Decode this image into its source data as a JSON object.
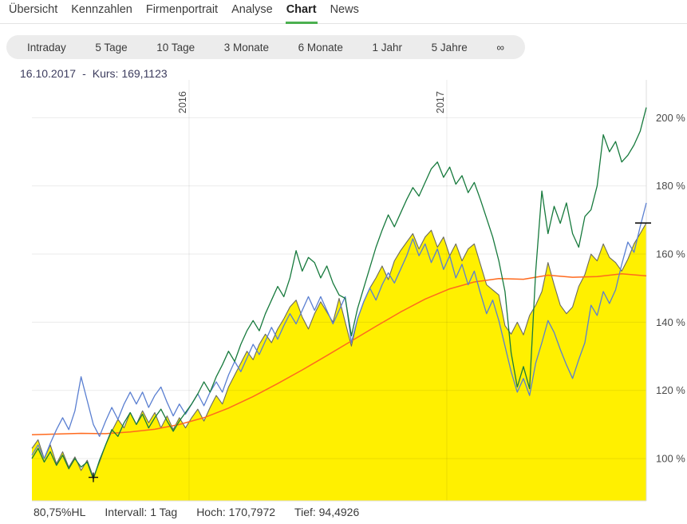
{
  "nav": {
    "items": [
      {
        "label": "Übersicht",
        "active": false
      },
      {
        "label": "Kennzahlen",
        "active": false
      },
      {
        "label": "Firmenportrait",
        "active": false
      },
      {
        "label": "Analyse",
        "active": false
      },
      {
        "label": "Chart",
        "active": true
      },
      {
        "label": "News",
        "active": false
      }
    ]
  },
  "range_bar": {
    "items": [
      "Intraday",
      "5 Tage",
      "10 Tage",
      "3 Monate",
      "6 Monate",
      "1 Jahr",
      "5 Jahre",
      "∞"
    ]
  },
  "info_line": {
    "date": "16.10.2017",
    "separator": "-",
    "kurs": "Kurs: 169,1123"
  },
  "footer": {
    "hl": "80,75%HL",
    "interval": "Intervall: 1 Tag",
    "high": "Hoch: 170,7972",
    "low": "Tief: 94,4926"
  },
  "theme": {
    "accent": "#4CB050",
    "grid": "rgba(0,0,0,0.08)",
    "frame": "#dddddd",
    "marker": "#111111"
  },
  "chart_data": {
    "type": "line",
    "title": "",
    "xlabel": "",
    "ylabel": "",
    "legend": "none",
    "grid": true,
    "y_axis": {
      "ticks": [
        100,
        120,
        140,
        160,
        180,
        200
      ],
      "tick_suffix": " %",
      "ylim": [
        87.6,
        211.1
      ],
      "side": "right"
    },
    "x_axis": {
      "gridlines": [
        {
          "label": "2016",
          "x": 0.2558
        },
        {
          "label": "2017",
          "x": 0.6753
        }
      ]
    },
    "markers": {
      "low": {
        "x": 0.1,
        "value": 94.4926
      },
      "current": {
        "x": 1.0,
        "value": 169.1123
      }
    },
    "series": [
      {
        "name": "main-price-area",
        "type": "area",
        "color": "#FFF000",
        "edge_color": "#6B6B5F",
        "values": [
          103,
          105.5,
          100,
          104,
          98.5,
          102,
          97.5,
          100.5,
          96.5,
          99.5,
          94.5,
          99,
          104,
          108,
          111.5,
          109,
          113.5,
          110,
          114,
          110.5,
          113.5,
          109,
          112.5,
          108.5,
          112,
          109,
          112,
          114.5,
          111,
          115,
          118.5,
          116,
          121,
          124.5,
          128,
          131.5,
          129,
          133.5,
          136.5,
          134,
          138,
          141,
          144.5,
          146.5,
          141.5,
          138,
          142.5,
          146,
          143,
          140,
          147,
          140,
          133,
          141,
          146,
          150,
          153,
          156.5,
          152.5,
          158,
          161,
          163.5,
          166,
          161.5,
          165,
          167,
          162,
          165,
          159.5,
          163,
          158,
          161.5,
          163,
          157,
          151,
          149.5,
          148,
          139,
          136.5,
          140,
          136.3,
          142,
          145,
          149,
          157.5,
          151,
          145,
          142.5,
          144.5,
          150.5,
          154,
          160,
          158,
          163,
          159,
          157.5,
          155,
          158.5,
          163,
          166,
          169.1
        ]
      },
      {
        "name": "moving-average",
        "type": "line",
        "color": "#FF6A1E",
        "width": 1.5,
        "values": [
          107,
          107.2,
          107.4,
          107.3,
          107.8,
          108.6,
          110,
          112,
          114.8,
          118.2,
          122,
          126,
          130.2,
          134.5,
          138.8,
          143,
          146.8,
          149.8,
          151.8,
          152.8,
          152.6,
          153.8,
          153.2,
          153.4,
          154.2,
          153.6
        ]
      },
      {
        "name": "comparison-blue",
        "type": "line",
        "color": "#5A7FD1",
        "width": 1.3,
        "values": [
          101,
          104,
          100,
          104.5,
          108.5,
          112,
          108.5,
          114,
          124,
          117,
          110,
          106.5,
          111,
          115,
          111.5,
          116,
          119.5,
          116,
          119.5,
          115,
          118.5,
          121,
          116.5,
          112.5,
          116,
          113,
          116,
          119,
          115.5,
          119.5,
          122.5,
          119.5,
          124.5,
          128.5,
          125.5,
          129.5,
          133.5,
          130.5,
          134.5,
          138.5,
          135,
          139,
          142.5,
          139.5,
          143.5,
          147.5,
          143.5,
          147.5,
          143.5,
          139.5,
          143.5,
          147.5,
          134,
          141,
          146,
          150,
          146.5,
          151,
          154.5,
          151.5,
          155.5,
          159.5,
          164.5,
          159.5,
          163,
          157.5,
          161.5,
          155.5,
          159.5,
          153,
          157,
          151,
          155,
          148.5,
          142.5,
          146.5,
          140.5,
          133,
          125.5,
          119.5,
          123.5,
          118.5,
          128,
          134,
          140.5,
          137,
          132,
          127.5,
          123.5,
          129,
          134,
          145,
          142,
          149,
          145.5,
          149.5,
          157,
          163.5,
          160.5,
          168,
          175
        ]
      },
      {
        "name": "comparison-green",
        "type": "line",
        "color": "#177A3D",
        "width": 1.3,
        "values": [
          100,
          103,
          99,
          102,
          98,
          101,
          97,
          100,
          97.5,
          99,
          94,
          99.5,
          104,
          108.5,
          106.5,
          110.5,
          113.5,
          110,
          113,
          109,
          112,
          114.5,
          111,
          108,
          111,
          113.5,
          116,
          119,
          122.5,
          119.5,
          124,
          127.5,
          131.5,
          128.5,
          133.5,
          137.5,
          140.5,
          137.5,
          142.5,
          146.5,
          150.5,
          147.5,
          153,
          161,
          155,
          159,
          157.5,
          153,
          156.5,
          151.5,
          148,
          147,
          136,
          144,
          150,
          156,
          162,
          167,
          171.5,
          168,
          172,
          176,
          179.5,
          177,
          181,
          185,
          187,
          182.5,
          185.5,
          180.5,
          183,
          178,
          181,
          176,
          170.5,
          165,
          158,
          149,
          131,
          121,
          127,
          120.5,
          155,
          178.5,
          166,
          174,
          169,
          175,
          166,
          162,
          171,
          173,
          180,
          195,
          190,
          193,
          187,
          189,
          192,
          196,
          203
        ]
      }
    ]
  }
}
